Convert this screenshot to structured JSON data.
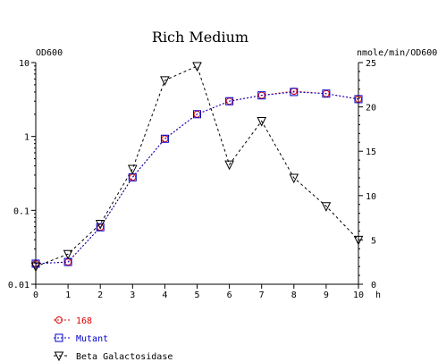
{
  "chart_data": {
    "type": "line",
    "title": "Rich Medium",
    "y_left_label": "OD600",
    "y_right_label": "nmole/min/OD600",
    "x_unit_label": "h",
    "x_ticks": [
      "0",
      "1",
      "2",
      "3",
      "4",
      "5",
      "6",
      "7",
      "8",
      "9",
      "10"
    ],
    "y_left_ticks": [
      "10",
      "1",
      "0.1",
      "0.01"
    ],
    "y_right_ticks": [
      "25",
      "20",
      "15",
      "10",
      "5",
      "0"
    ],
    "xlim": [
      0,
      10
    ],
    "y_left_scale": "log",
    "y_left_lim": [
      0.01,
      10
    ],
    "y_right_lim": [
      0,
      25
    ],
    "grid": false,
    "legend_position": "bottom-left",
    "series": [
      {
        "name": "168",
        "axis": "left",
        "color": "#dd0000",
        "line_style": "dotted",
        "marker": "circle",
        "x": [
          0,
          1,
          2,
          3,
          4,
          5,
          6,
          7,
          8,
          9,
          10
        ],
        "y": [
          0.019,
          0.02,
          0.059,
          0.28,
          0.93,
          2.0,
          3.0,
          3.6,
          4.1,
          3.8,
          3.2
        ]
      },
      {
        "name": "Mutant",
        "axis": "left",
        "color": "#0000cc",
        "line_style": "dotted",
        "marker": "square",
        "x": [
          0,
          1,
          2,
          3,
          4,
          5,
          6,
          7,
          8,
          9,
          10
        ],
        "y": [
          0.019,
          0.02,
          0.059,
          0.28,
          0.93,
          2.0,
          3.0,
          3.6,
          4.0,
          3.8,
          3.2
        ]
      },
      {
        "name": "Beta Galactosidase",
        "axis": "right",
        "color": "#000000",
        "line_style": "dashed",
        "marker": "triangle-down",
        "x": [
          0,
          1,
          2,
          3,
          4,
          5,
          6,
          7,
          8,
          9,
          10
        ],
        "y": [
          2.0,
          3.4,
          6.8,
          13.0,
          23.0,
          24.6,
          13.5,
          18.4,
          12.0,
          8.8,
          5.0
        ]
      }
    ]
  }
}
